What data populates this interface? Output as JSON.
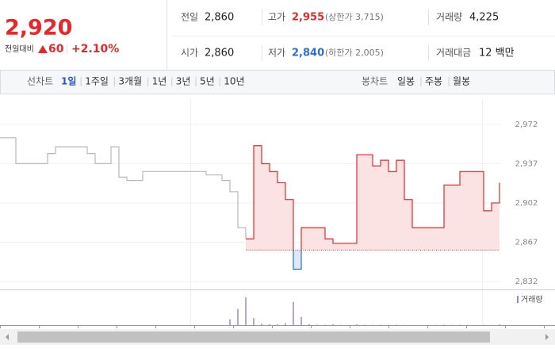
{
  "header": {
    "price": "2,920",
    "change_label": "전일대비",
    "change": "60",
    "change_rate": "+2.10%",
    "stats": [
      {
        "label": "전일",
        "value": "2,860"
      },
      {
        "label": "고가",
        "value": "2,955",
        "extra": "(상한가 3,715)"
      },
      {
        "label": "거래량",
        "value": "4,225"
      },
      {
        "label": "시가",
        "value": "2,860"
      },
      {
        "label": "저가",
        "value": "2,840",
        "extra": "(하한가 2,005)"
      },
      {
        "label": "거래대금",
        "value": "12 백만"
      }
    ]
  },
  "tabs": {
    "line_label": "선차트",
    "line_periods": [
      "1일",
      "1주일",
      "3개월",
      "1년",
      "3년",
      "5년",
      "10년"
    ],
    "candle_label": "봉차트",
    "candle_periods": [
      "일봉",
      "주봉",
      "월봉"
    ]
  },
  "chart_data": {
    "type": "line",
    "categories": [
      null,
      null,
      null,
      null,
      null,
      null,
      null,
      null,
      null,
      null,
      null,
      null,
      null,
      null,
      null,
      null,
      null,
      null,
      null,
      null,
      null,
      null,
      null,
      null,
      null,
      null,
      null,
      null,
      null,
      null,
      null,
      null,
      null,
      null,
      null,
      null,
      null,
      null,
      null,
      null,
      null,
      null,
      null,
      null,
      null,
      null,
      null,
      null,
      null,
      null,
      null,
      null,
      null,
      null,
      null,
      null,
      null,
      null,
      null,
      null,
      null,
      null,
      null,
      null
    ],
    "ylim": [
      2825,
      2998
    ],
    "yticks": [
      {
        "value": 2832,
        "label": "2,832"
      },
      {
        "value": 2867,
        "label": "2,867"
      },
      {
        "value": 2902,
        "label": "2,902"
      },
      {
        "value": 2937,
        "label": "2,937"
      },
      {
        "value": 2972,
        "label": "2,972"
      }
    ],
    "baseline": 2860,
    "up_color": "#e8272a",
    "down_color": "#2b6fd6",
    "series": [
      {
        "color": "#b8b8b8",
        "values": [
          2960,
          2960,
          2937,
          2937,
          2937,
          2937,
          2946,
          2952,
          2952,
          2952,
          2952,
          2946,
          2937,
          2937,
          2952,
          2925,
          2922,
          2922,
          2930,
          2930,
          2930,
          2930,
          2930,
          2930,
          2930,
          2930,
          2927,
          2927,
          2922,
          2912,
          2880,
          2870,
          null,
          null,
          null,
          null,
          null,
          null,
          null,
          null,
          null,
          null,
          null,
          null,
          null,
          null,
          null,
          null,
          null,
          null,
          null,
          null,
          null,
          null,
          null,
          null,
          null,
          null,
          null,
          null,
          null,
          null,
          null,
          null
        ]
      },
      {
        "color": "#e8272a",
        "fill": true,
        "values": [
          null,
          null,
          null,
          null,
          null,
          null,
          null,
          null,
          null,
          null,
          null,
          null,
          null,
          null,
          null,
          null,
          null,
          null,
          null,
          null,
          null,
          null,
          null,
          null,
          null,
          null,
          null,
          null,
          null,
          null,
          null,
          2870,
          2953,
          2937,
          2930,
          2920,
          2905,
          2843,
          2880,
          2880,
          2880,
          2870,
          2866,
          2866,
          2866,
          2945,
          2945,
          2935,
          2940,
          2930,
          2940,
          2905,
          2880,
          2880,
          2880,
          2880,
          2918,
          2918,
          2930,
          2930,
          2930,
          2895,
          2902,
          2920
        ]
      }
    ],
    "volume": {
      "name": "거래량",
      "color": "#9b87c6",
      "ylim": [
        0,
        1300
      ],
      "values": [
        0,
        0,
        0,
        0,
        0,
        0,
        0,
        0,
        0,
        0,
        0,
        0,
        0,
        0,
        0,
        0,
        0,
        0,
        0,
        0,
        0,
        0,
        0,
        0,
        0,
        0,
        0,
        0,
        0,
        250,
        700,
        1200,
        300,
        60,
        40,
        30,
        80,
        1000,
        350,
        40,
        20,
        20,
        30,
        10,
        10,
        30,
        20,
        10,
        20,
        10,
        20,
        10,
        10,
        10,
        10,
        10,
        20,
        10,
        20,
        10,
        10,
        20,
        10,
        30
      ]
    }
  }
}
